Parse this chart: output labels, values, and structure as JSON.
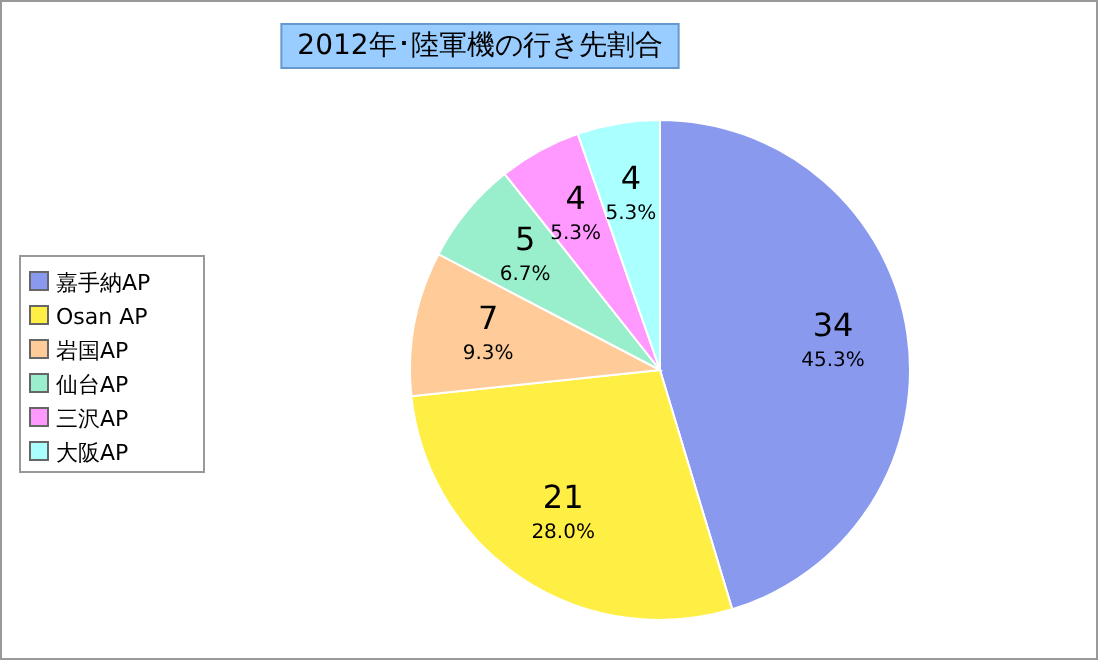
{
  "chart_data": {
    "type": "pie",
    "title": "2012年･陸軍機の行き先割合",
    "categories": [
      "嘉手納AP",
      "Osan AP",
      "岩国AP",
      "仙台AP",
      "三沢AP",
      "大阪AP"
    ],
    "values": [
      34,
      21,
      7,
      5,
      4,
      4
    ],
    "colors": [
      "#8899ee",
      "#ffee44",
      "#ffcc99",
      "#99eecc",
      "#ff99ff",
      "#aaffff"
    ],
    "data_labels": true,
    "annotations": [
      "45.3%",
      "28.0%",
      "9.3%",
      "6.7%",
      "5.3%",
      "5.3%"
    ],
    "legend": "left"
  }
}
